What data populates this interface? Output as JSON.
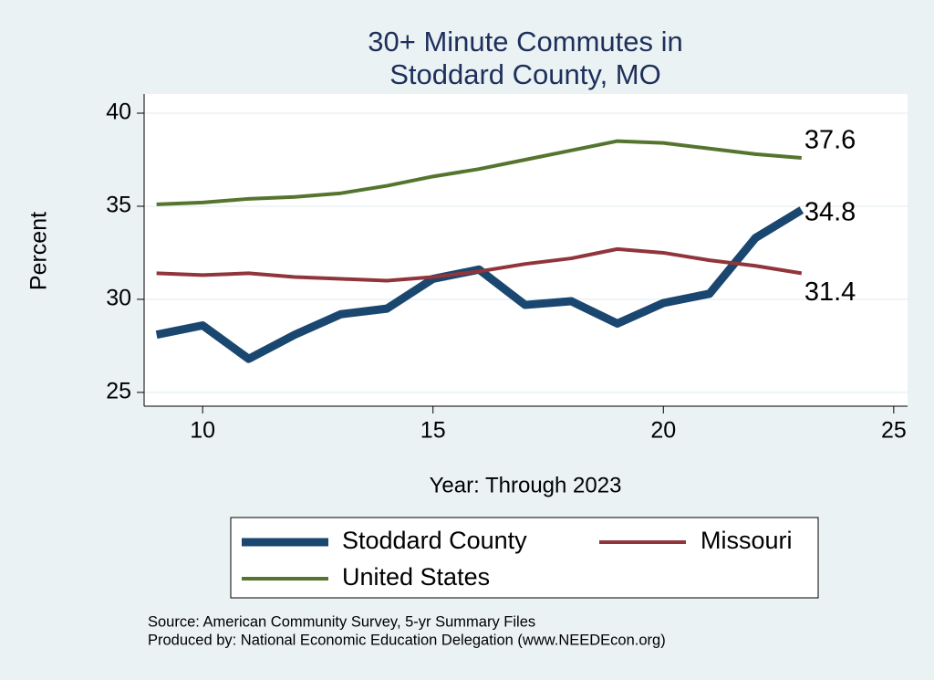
{
  "chart_data": {
    "type": "line",
    "title": [
      "30+ Minute Commutes in",
      "Stoddard County, MO"
    ],
    "x_label": "Year: Through 2023",
    "y_label": "Percent",
    "notes": [
      "Source: American Community Survey, 5-yr Summary Files",
      "Produced by: National Economic Education Delegation (www.NEEDEcon.org)"
    ],
    "x": [
      9,
      10,
      11,
      12,
      13,
      14,
      15,
      16,
      17,
      18,
      19,
      20,
      21,
      22,
      23
    ],
    "series": [
      {
        "name": "Stoddard County",
        "color": "#1a476f",
        "values": [
          28.1,
          28.6,
          26.8,
          28.1,
          29.2,
          29.5,
          31.1,
          31.6,
          29.7,
          29.9,
          28.7,
          29.8,
          30.3,
          33.3,
          34.8
        ]
      },
      {
        "name": "Missouri",
        "color": "#90353b",
        "values": [
          31.4,
          31.3,
          31.4,
          31.2,
          31.1,
          31.0,
          31.2,
          31.5,
          31.9,
          32.2,
          32.7,
          32.5,
          32.1,
          31.8,
          31.4
        ]
      },
      {
        "name": "United States",
        "color": "#55752f",
        "values": [
          35.1,
          35.2,
          35.4,
          35.5,
          35.7,
          36.1,
          36.6,
          37.0,
          37.5,
          38.0,
          38.5,
          38.4,
          38.1,
          37.8,
          37.6
        ]
      }
    ],
    "xlim": [
      8.73,
      25.3
    ],
    "ylim": [
      24.26,
      41.03
    ],
    "xticks": [
      10,
      15,
      20,
      25
    ],
    "yticks": [
      25,
      30,
      35,
      40
    ],
    "grid": true
  }
}
